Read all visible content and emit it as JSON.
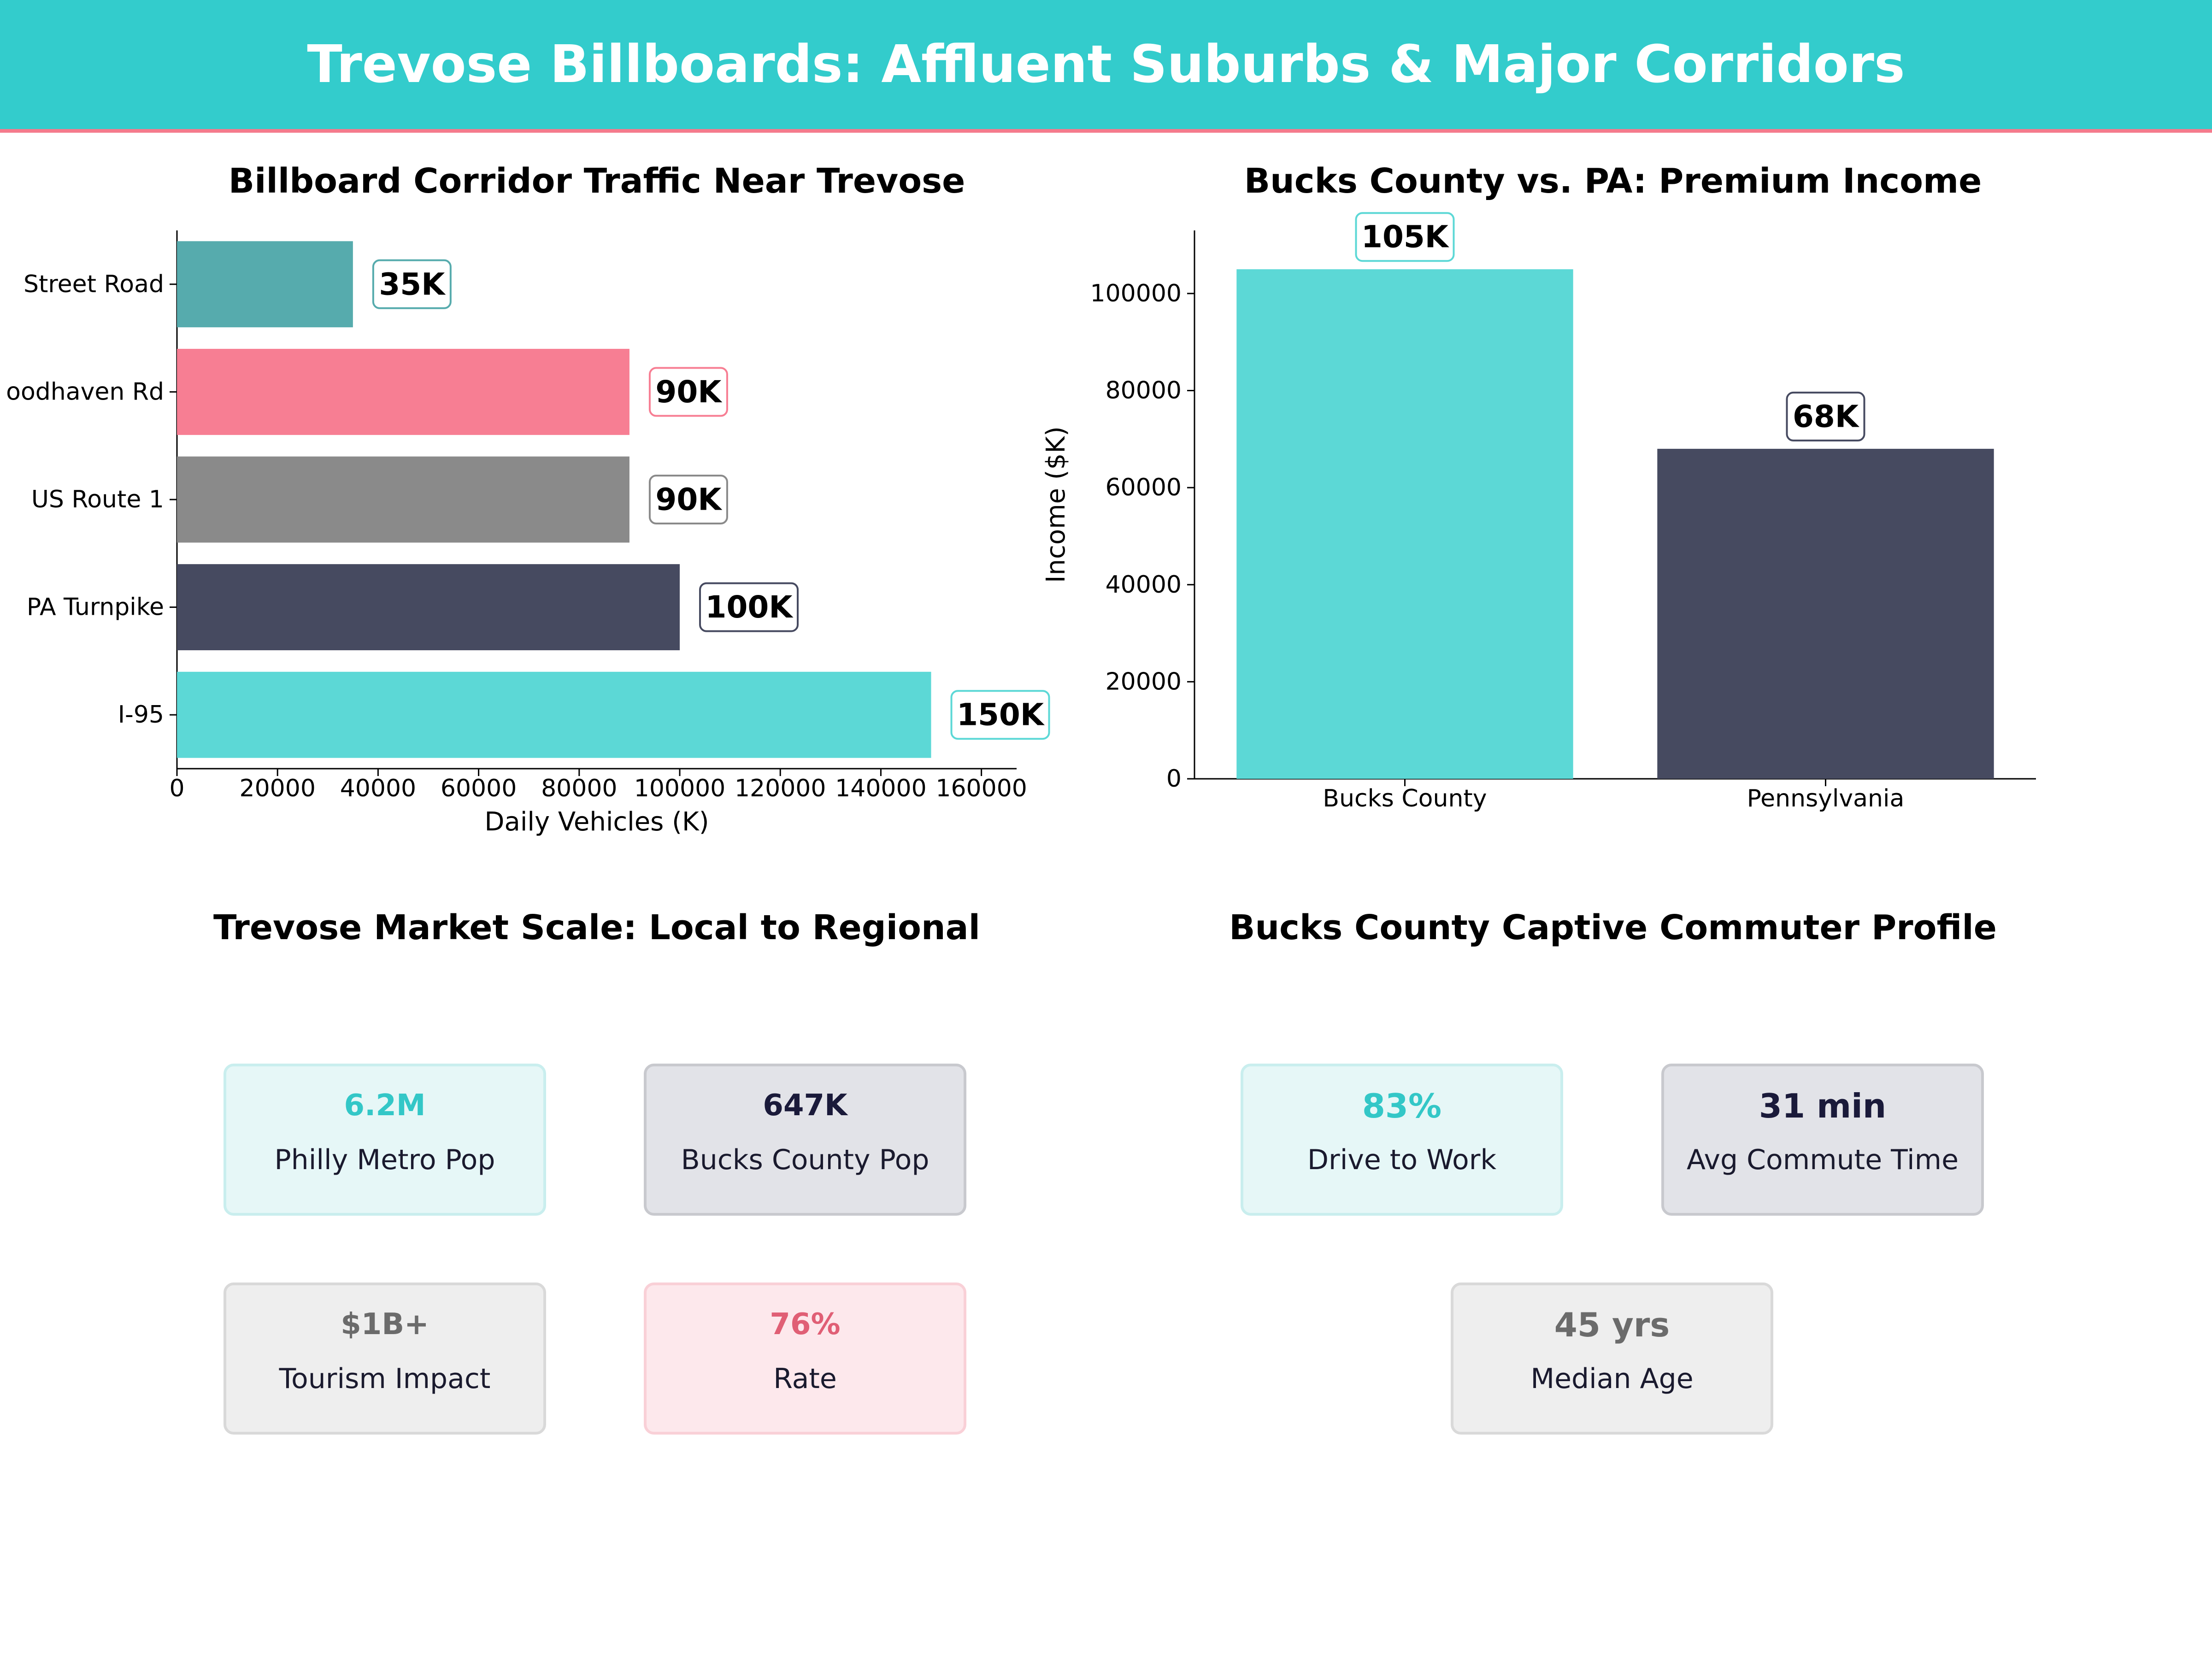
{
  "banner": {
    "title": "Trevose Billboards: Affluent Suburbs & Major Corridors"
  },
  "colors": {
    "banner": "#33cccc",
    "banner_border": "#f47a8c",
    "teal": "#5cd8d6",
    "navy": "#464a60",
    "gray": "#8a8a8a",
    "pink": "#f77e93",
    "darkteal": "#56abad"
  },
  "panels": {
    "traffic_title": "Billboard Corridor Traffic Near Trevose",
    "income_title": "Bucks County vs. PA: Premium Income",
    "market_title": "Trevose Market Scale: Local to Regional",
    "commuter_title": "Bucks County Captive Commuter Profile"
  },
  "chart_data": [
    {
      "type": "bar",
      "orientation": "horizontal",
      "title": "Billboard Corridor Traffic Near Trevose",
      "categories": [
        "I-95",
        "PA Turnpike",
        "US Route 1",
        "oodhaven Rd",
        "Street Road"
      ],
      "values": [
        150000,
        100000,
        90000,
        90000,
        35000
      ],
      "data_labels": [
        "150K",
        "100K",
        "90K",
        "90K",
        "35K"
      ],
      "bar_colors": [
        "#5cd8d6",
        "#464a60",
        "#8a8a8a",
        "#f77e93",
        "#56abad"
      ],
      "xlabel": "Daily Vehicles (K)",
      "xlim": [
        0,
        167000
      ],
      "xticks": [
        0,
        20000,
        40000,
        60000,
        80000,
        100000,
        120000,
        140000,
        160000
      ],
      "grid": false
    },
    {
      "type": "bar",
      "orientation": "vertical",
      "title": "Bucks County vs. PA: Premium Income",
      "categories": [
        "Bucks County",
        "Pennsylvania"
      ],
      "values": [
        105000,
        68000
      ],
      "data_labels": [
        "105K",
        "68K"
      ],
      "bar_colors": [
        "#5cd8d6",
        "#464a60"
      ],
      "ylabel": "Income ($K)",
      "ylim": [
        0,
        113000
      ],
      "yticks": [
        0,
        20000,
        40000,
        60000,
        80000,
        100000
      ],
      "grid": false
    }
  ],
  "market_stats": [
    {
      "value": "6.2M",
      "label": "Philly Metro Pop",
      "accent": "#33c7c7",
      "fill": "#e6f7f7",
      "border": "#c9eeee"
    },
    {
      "value": "647K",
      "label": "Bucks County Pop",
      "accent": "#1a1a3a",
      "fill": "#e2e3e8",
      "border": "#c8c9ce"
    },
    {
      "value": "$1B+",
      "label": "Tourism Impact",
      "accent": "#6b6b6b",
      "fill": "#eeeeee",
      "border": "#d9d9d9"
    },
    {
      "value": "76%",
      "label": "Rate",
      "accent": "#e05f75",
      "fill": "#fde8ec",
      "border": "#f9d0d7"
    }
  ],
  "commuter_stats": [
    {
      "value": "83%",
      "label": "Drive to Work",
      "accent": "#33c7c7",
      "fill": "#e6f7f7",
      "border": "#c9eeee"
    },
    {
      "value": "31 min",
      "label": "Avg Commute Time",
      "accent": "#1a1a3a",
      "fill": "#e2e3e8",
      "border": "#c8c9ce"
    },
    {
      "value": "45 yrs",
      "label": "Median Age",
      "accent": "#6b6b6b",
      "fill": "#eeeeee",
      "border": "#d9d9d9"
    }
  ]
}
